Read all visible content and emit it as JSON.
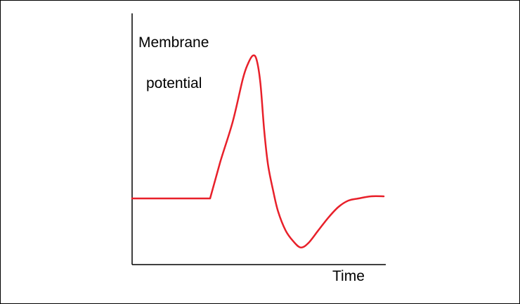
{
  "chart_data": {
    "type": "line",
    "title": "",
    "xlabel": "Time",
    "ylabel_line1": "Membrane",
    "ylabel_line2": "potential",
    "grid": false,
    "legend": "none",
    "xlim": [
      0,
      100
    ],
    "ylim": [
      0,
      100
    ],
    "series": [
      {
        "color": "#e8202a",
        "x": [
          0,
          31,
          35,
          40,
          44,
          46,
          48,
          49.5,
          51,
          52.5,
          54,
          56,
          58,
          61,
          64,
          67,
          70,
          74,
          78,
          82,
          86,
          90,
          95,
          100
        ],
        "y": [
          30,
          30,
          47,
          66,
          86,
          93,
          97,
          95,
          84,
          62,
          46,
          34,
          24,
          15,
          10,
          7,
          9,
          15,
          21,
          26,
          29,
          30,
          31,
          31
        ]
      }
    ]
  }
}
